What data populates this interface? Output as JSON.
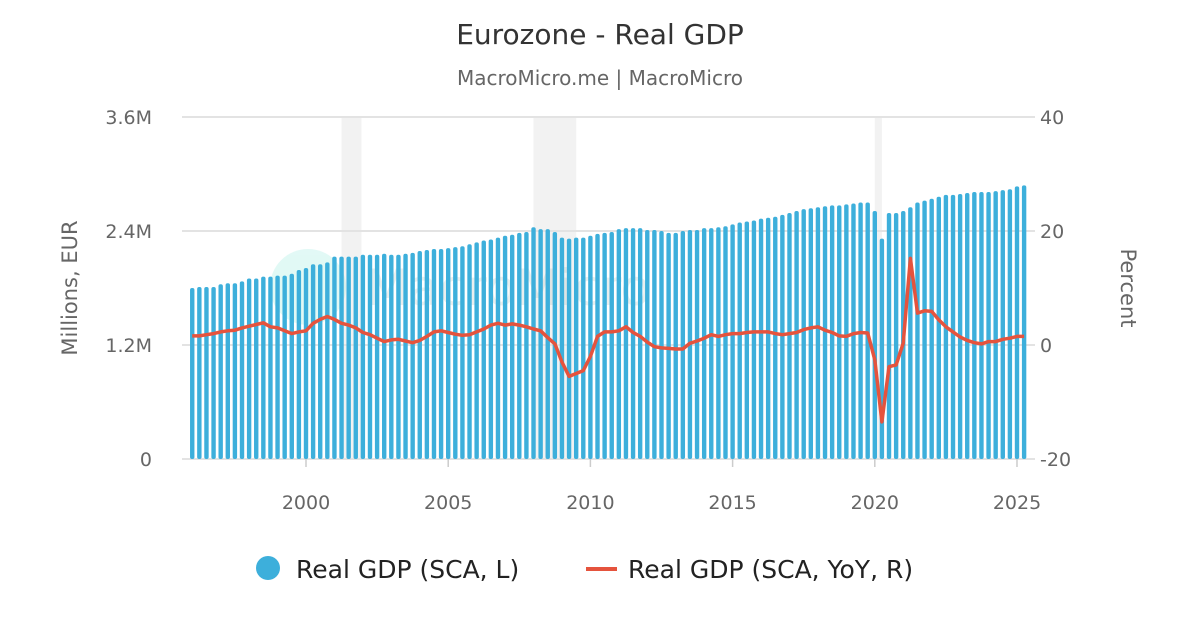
{
  "chart_data": {
    "type": "bar+line",
    "title": "Eurozone - Real GDP",
    "subtitle": "MacroMicro.me | MacroMicro",
    "watermark": "MacroMicro",
    "frequency": "quarterly",
    "start": "1996Q1",
    "end": "2025Q2",
    "x_ticks": [
      "2000",
      "2005",
      "2010",
      "2015",
      "2020",
      "2025"
    ],
    "left_axis": {
      "label": "Millions, EUR",
      "ylim": [
        0,
        3.6
      ],
      "unit": "M",
      "ticks": [
        "0",
        "1.2M",
        "2.4M",
        "3.6M"
      ]
    },
    "right_axis": {
      "label": "Percent",
      "ylim": [
        -20,
        40
      ],
      "ticks": [
        "-20",
        "0",
        "20",
        "40"
      ]
    },
    "grid": true,
    "legend_position": "bottom",
    "recessions": [
      [
        2001.25,
        2001.95
      ],
      [
        2008.0,
        2009.5
      ],
      [
        2020.0,
        2020.25
      ]
    ],
    "series": [
      {
        "name": "Real GDP (SCA, L)",
        "type": "bar",
        "axis": "left",
        "color": "#3dafdb",
        "values": [
          1.8,
          1.81,
          1.81,
          1.81,
          1.84,
          1.85,
          1.85,
          1.87,
          1.9,
          1.9,
          1.92,
          1.92,
          1.93,
          1.93,
          1.95,
          1.99,
          2.01,
          2.05,
          2.05,
          2.07,
          2.13,
          2.13,
          2.13,
          2.13,
          2.15,
          2.15,
          2.15,
          2.16,
          2.15,
          2.15,
          2.16,
          2.17,
          2.19,
          2.2,
          2.21,
          2.21,
          2.22,
          2.23,
          2.24,
          2.26,
          2.28,
          2.3,
          2.31,
          2.33,
          2.35,
          2.36,
          2.38,
          2.39,
          2.44,
          2.42,
          2.42,
          2.39,
          2.33,
          2.32,
          2.33,
          2.33,
          2.35,
          2.37,
          2.38,
          2.39,
          2.42,
          2.43,
          2.43,
          2.43,
          2.41,
          2.41,
          2.4,
          2.38,
          2.38,
          2.4,
          2.41,
          2.41,
          2.43,
          2.43,
          2.44,
          2.45,
          2.47,
          2.49,
          2.5,
          2.51,
          2.53,
          2.54,
          2.55,
          2.57,
          2.59,
          2.61,
          2.63,
          2.64,
          2.65,
          2.66,
          2.67,
          2.67,
          2.68,
          2.69,
          2.7,
          2.7,
          2.61,
          2.32,
          2.59,
          2.59,
          2.61,
          2.65,
          2.7,
          2.72,
          2.74,
          2.76,
          2.78,
          2.78,
          2.79,
          2.8,
          2.81,
          2.81,
          2.81,
          2.82,
          2.83,
          2.84,
          2.87,
          2.88
        ]
      },
      {
        "name": "Real GDP (SCA, YoY, R)",
        "type": "line",
        "axis": "right",
        "color": "#e5533d",
        "values": [
          1.6,
          1.6,
          1.8,
          2.0,
          2.3,
          2.5,
          2.6,
          3.0,
          3.3,
          3.6,
          3.9,
          3.2,
          3.0,
          2.5,
          2.0,
          2.3,
          2.5,
          3.8,
          4.5,
          5.0,
          4.5,
          3.8,
          3.5,
          3.0,
          2.2,
          1.8,
          1.2,
          0.6,
          0.9,
          1.0,
          0.7,
          0.4,
          0.8,
          1.5,
          2.3,
          2.5,
          2.2,
          1.9,
          1.7,
          1.8,
          2.3,
          2.8,
          3.5,
          3.8,
          3.5,
          3.7,
          3.5,
          3.2,
          2.8,
          2.5,
          1.3,
          0.2,
          -3.0,
          -5.5,
          -5.0,
          -4.5,
          -2.0,
          1.5,
          2.3,
          2.3,
          2.5,
          3.2,
          2.2,
          1.5,
          0.5,
          -0.3,
          -0.5,
          -0.6,
          -0.7,
          -0.7,
          0.3,
          0.7,
          1.2,
          1.8,
          1.5,
          1.8,
          2.0,
          2.0,
          2.2,
          2.3,
          2.3,
          2.3,
          2.0,
          1.8,
          2.0,
          2.2,
          2.7,
          3.0,
          3.2,
          2.6,
          2.2,
          1.6,
          1.5,
          2.0,
          2.2,
          2.1,
          -2.6,
          -13.5,
          -3.8,
          -3.5,
          0.3,
          15.2,
          5.6,
          6.0,
          5.9,
          4.4,
          3.2,
          2.3,
          1.4,
          0.8,
          0.4,
          0.2,
          0.6,
          0.6,
          1.0,
          1.2,
          1.5,
          1.5
        ]
      }
    ]
  }
}
